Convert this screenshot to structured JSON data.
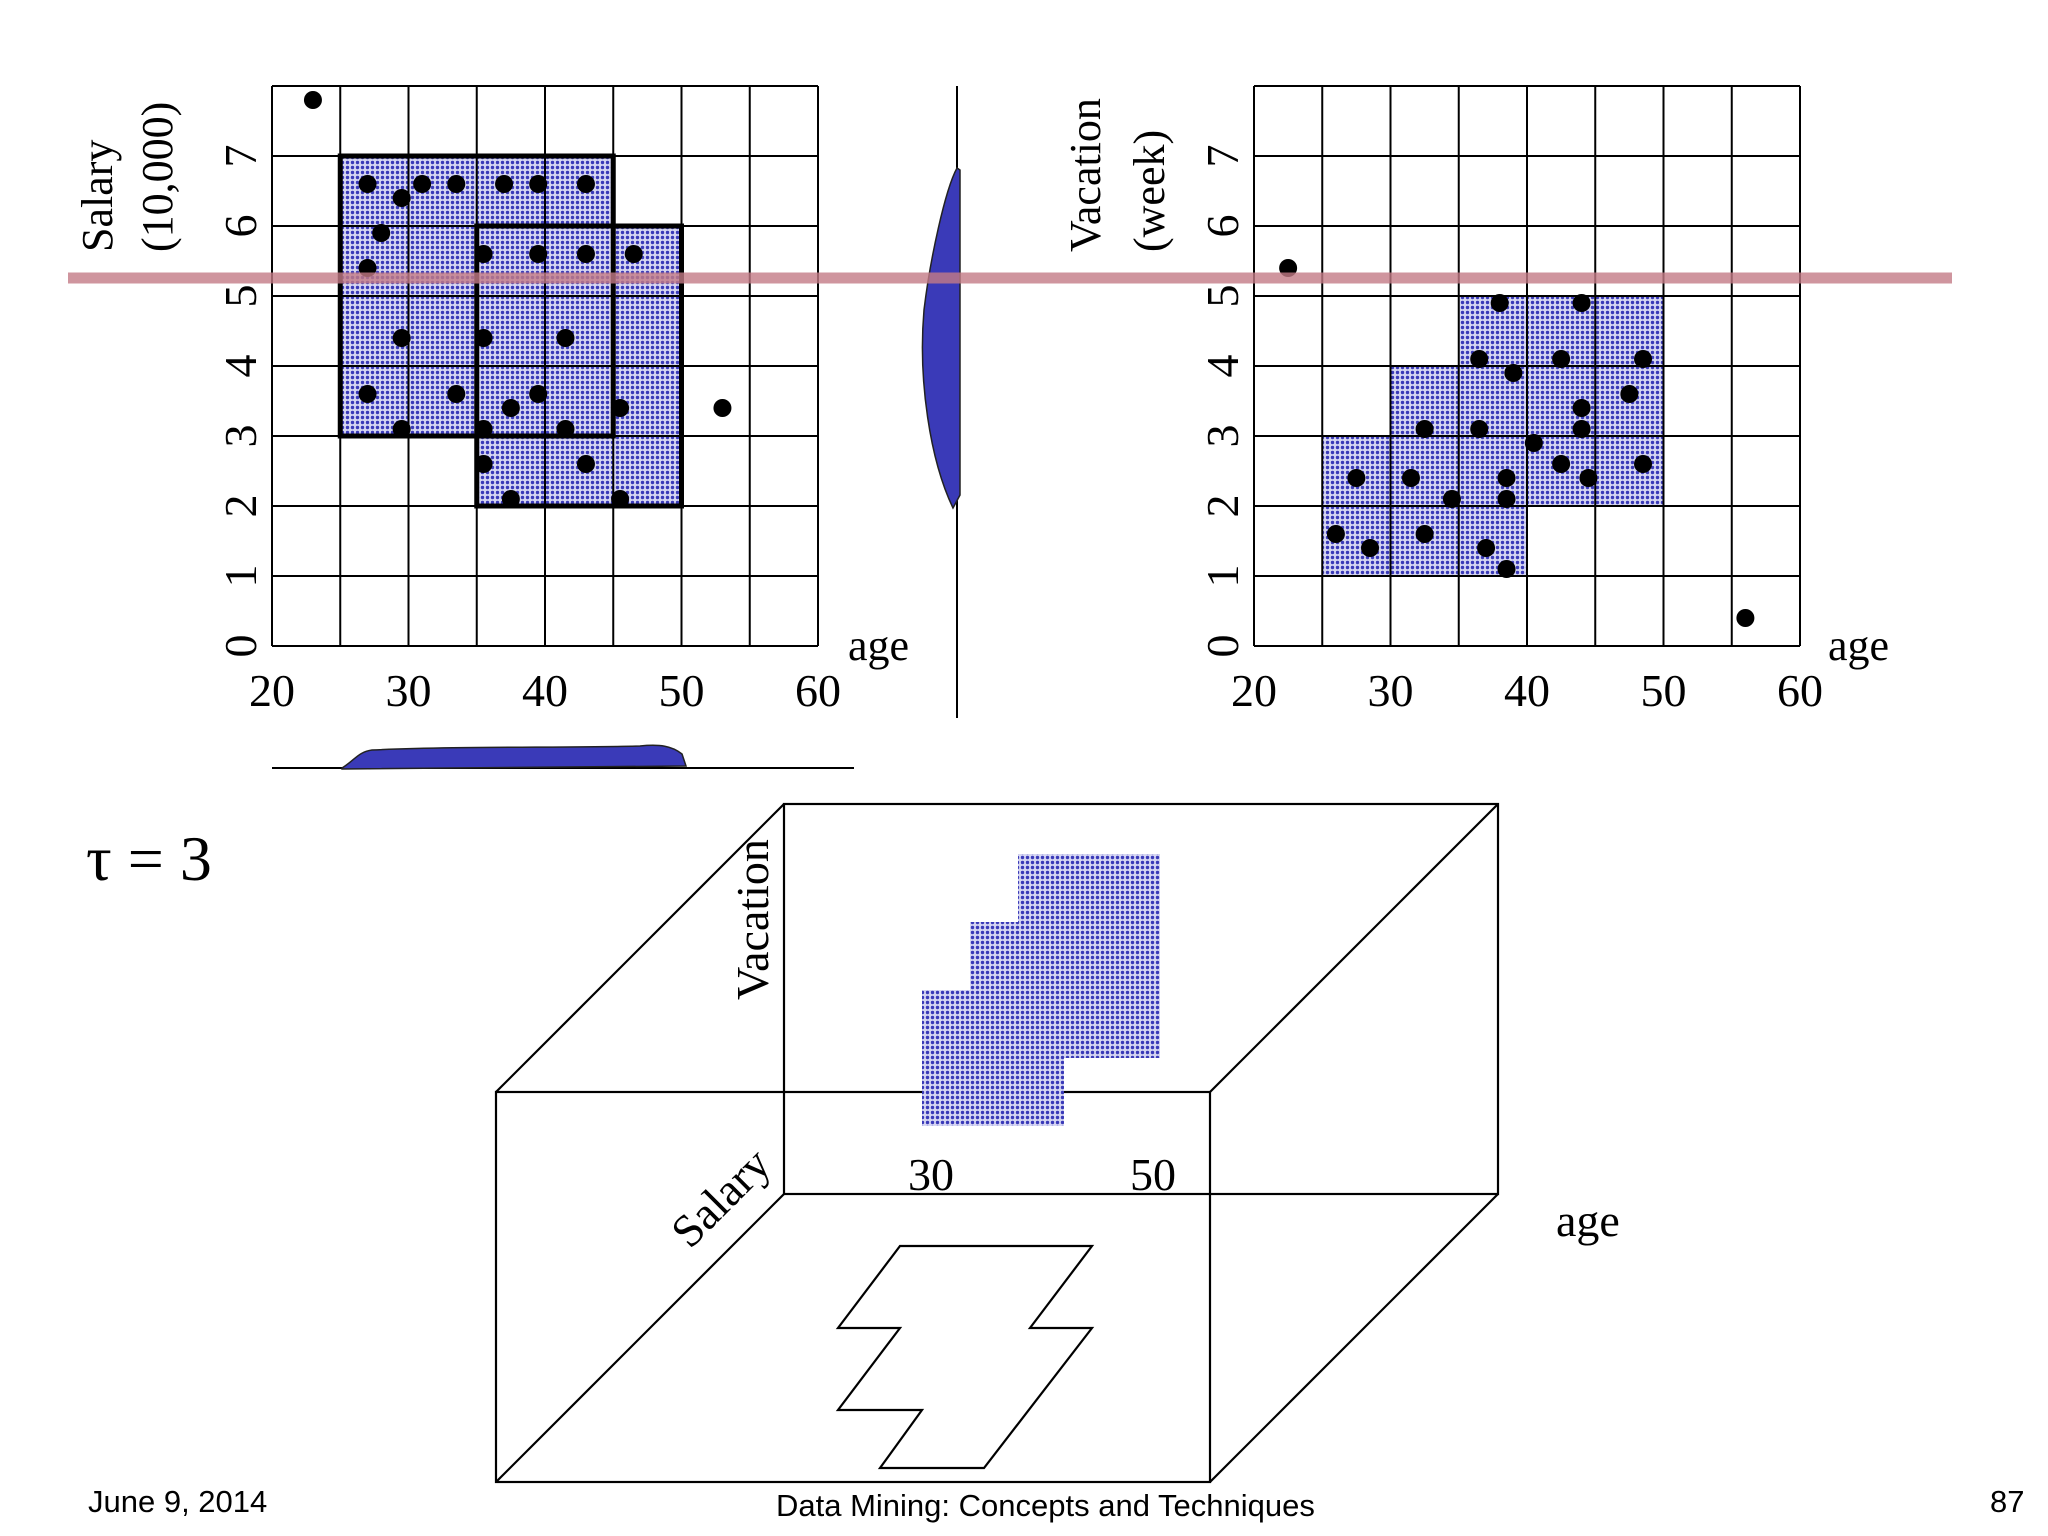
{
  "tau_label": "τ = 3",
  "colors": {
    "cell_fill": "#3a3ab8",
    "point": "#000000",
    "highlight_line": "#c47b86",
    "grid": "#000000"
  },
  "chart_data": [
    {
      "type": "scatter",
      "name": "salary-vs-age",
      "xlabel": "age",
      "ylabel_lines": [
        "Salary",
        "(10,000)"
      ],
      "x_ticks": [
        "20",
        "30",
        "40",
        "50",
        "60"
      ],
      "y_ticks": [
        "0",
        "1",
        "2",
        "3",
        "4",
        "5",
        "6",
        "7"
      ],
      "xlim": [
        20,
        60
      ],
      "ylim": [
        0,
        8
      ],
      "dense_regions": [
        {
          "x": [
            25,
            45
          ],
          "y": [
            3,
            7
          ]
        },
        {
          "x": [
            35,
            50
          ],
          "y": [
            2,
            6
          ]
        }
      ],
      "points": [
        [
          23,
          7.8
        ],
        [
          27,
          6.6
        ],
        [
          29.5,
          6.4
        ],
        [
          31,
          6.6
        ],
        [
          33.5,
          6.6
        ],
        [
          37,
          6.6
        ],
        [
          39.5,
          6.6
        ],
        [
          43,
          6.6
        ],
        [
          28,
          5.9
        ],
        [
          27,
          5.4
        ],
        [
          35.5,
          5.6
        ],
        [
          39.5,
          5.6
        ],
        [
          43,
          5.6
        ],
        [
          46.5,
          5.6
        ],
        [
          29.5,
          4.4
        ],
        [
          35.5,
          4.4
        ],
        [
          41.5,
          4.4
        ],
        [
          27,
          3.6
        ],
        [
          33.5,
          3.6
        ],
        [
          39.5,
          3.6
        ],
        [
          29.5,
          3.1
        ],
        [
          35.5,
          3.1
        ],
        [
          37.5,
          3.4
        ],
        [
          41.5,
          3.1
        ],
        [
          45.5,
          3.4
        ],
        [
          35.5,
          2.6
        ],
        [
          43,
          2.6
        ],
        [
          37.5,
          2.1
        ],
        [
          45.5,
          2.1
        ],
        [
          53,
          3.4
        ]
      ]
    },
    {
      "type": "scatter",
      "name": "vacation-vs-age",
      "xlabel": "age",
      "ylabel_lines": [
        "Vacation",
        "(week)"
      ],
      "x_ticks": [
        "20",
        "30",
        "40",
        "50",
        "60"
      ],
      "y_ticks": [
        "0",
        "1",
        "2",
        "3",
        "4",
        "5",
        "6",
        "7"
      ],
      "xlim": [
        20,
        60
      ],
      "ylim": [
        0,
        8
      ],
      "dense_cells": [
        [
          25,
          1
        ],
        [
          30,
          1
        ],
        [
          35,
          1
        ],
        [
          25,
          2
        ],
        [
          30,
          2
        ],
        [
          35,
          2
        ],
        [
          40,
          2
        ],
        [
          45,
          2
        ],
        [
          30,
          3
        ],
        [
          35,
          3
        ],
        [
          40,
          3
        ],
        [
          45,
          3
        ],
        [
          35,
          4
        ],
        [
          40,
          4
        ],
        [
          45,
          4
        ]
      ],
      "points": [
        [
          22.5,
          5.4
        ],
        [
          56,
          0.4
        ],
        [
          27.5,
          2.4
        ],
        [
          31.5,
          2.4
        ],
        [
          26,
          1.6
        ],
        [
          28.5,
          1.4
        ],
        [
          32.5,
          1.6
        ],
        [
          34.5,
          2.1
        ],
        [
          37,
          1.4
        ],
        [
          38.5,
          1.1
        ],
        [
          32.5,
          3.1
        ],
        [
          36.5,
          3.1
        ],
        [
          38.5,
          2.1
        ],
        [
          38.5,
          2.4
        ],
        [
          40.5,
          2.9
        ],
        [
          42.5,
          2.6
        ],
        [
          44.5,
          2.4
        ],
        [
          48.5,
          2.6
        ],
        [
          36.5,
          4.1
        ],
        [
          39,
          3.9
        ],
        [
          42.5,
          4.1
        ],
        [
          44,
          3.4
        ],
        [
          44,
          3.1
        ],
        [
          47.5,
          3.6
        ],
        [
          48.5,
          4.1
        ],
        [
          38,
          4.9
        ],
        [
          44,
          4.9
        ]
      ]
    }
  ],
  "projection": {
    "vacation_label": "Vacation",
    "salary_label": "Salary",
    "age_label": "age",
    "tick_30": "30",
    "tick_50": "50"
  },
  "footer": {
    "date": "June 9, 2014",
    "title": "Data Mining: Concepts and Techniques",
    "page": "87"
  }
}
